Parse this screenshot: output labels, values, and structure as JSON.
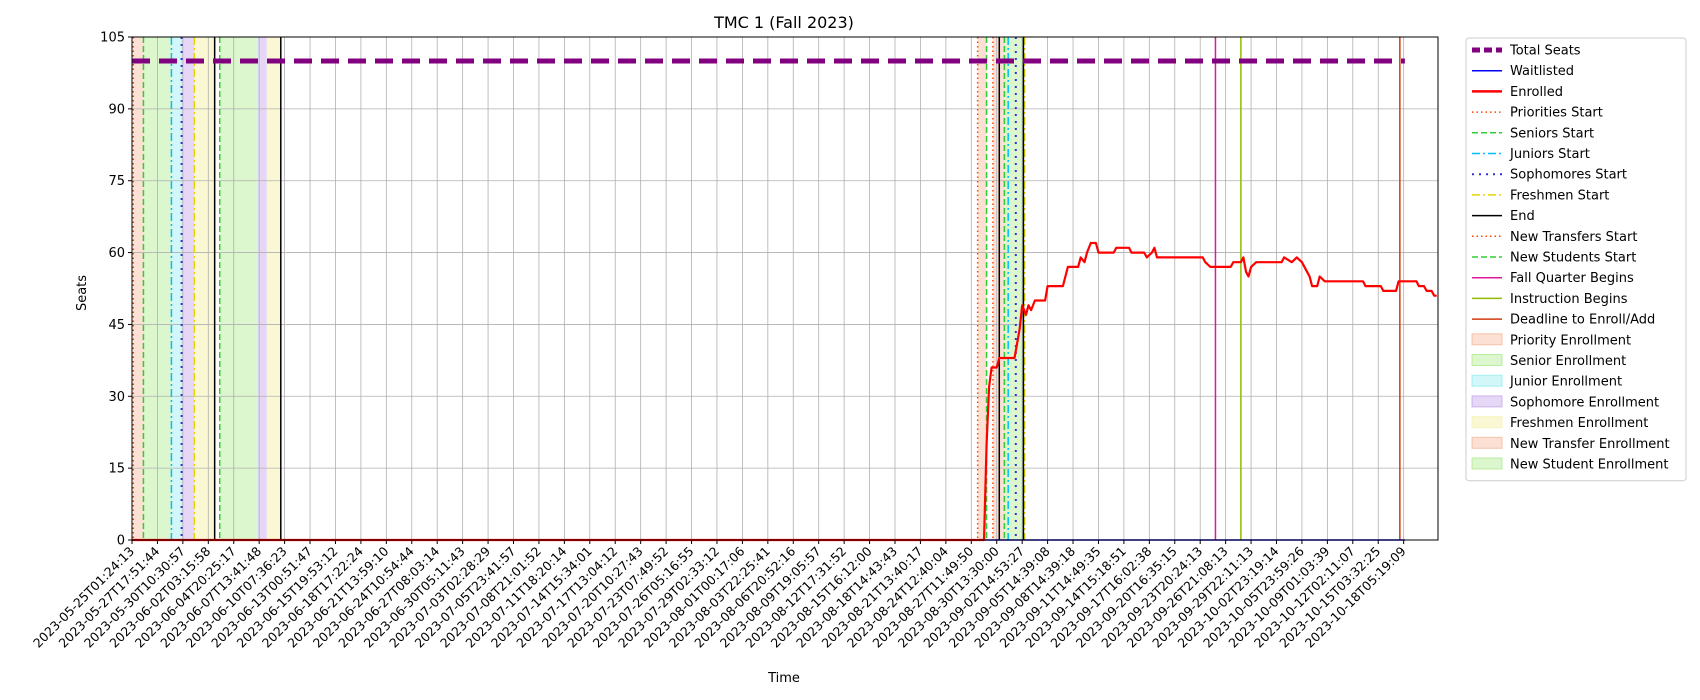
{
  "chart_data": {
    "type": "line",
    "title": "TMC 1 (Fall 2023)",
    "xlabel": "Time",
    "ylabel": "Seats",
    "ylim": [
      0,
      105
    ],
    "yticks": [
      0,
      15,
      30,
      45,
      60,
      75,
      90,
      105
    ],
    "grid": true,
    "legend_position": "outside-right",
    "xticks": [
      "2023-05-25T01:24:13",
      "2023-05-27T17:51:44",
      "2023-05-30T10:30:57",
      "2023-06-02T03:15:58",
      "2023-06-04T20:25:17",
      "2023-06-07T13:41:48",
      "2023-06-10T07:36:23",
      "2023-06-13T00:51:47",
      "2023-06-15T19:53:12",
      "2023-06-18T17:22:24",
      "2023-06-21T13:59:10",
      "2023-06-24T10:54:44",
      "2023-06-27T08:03:14",
      "2023-06-30T05:11:43",
      "2023-07-03T02:28:29",
      "2023-07-05T23:41:57",
      "2023-07-08T21:01:52",
      "2023-07-11T18:20:14",
      "2023-07-14T15:34:01",
      "2023-07-17T13:04:12",
      "2023-07-20T10:27:43",
      "2023-07-23T07:49:52",
      "2023-07-26T05:16:55",
      "2023-07-29T02:33:12",
      "2023-08-01T00:17:06",
      "2023-08-03T22:25:41",
      "2023-08-06T20:52:16",
      "2023-08-09T19:05:57",
      "2023-08-12T17:31:52",
      "2023-08-15T16:12:00",
      "2023-08-18T14:43:43",
      "2023-08-21T13:40:17",
      "2023-08-24T12:40:04",
      "2023-08-27T11:49:50",
      "2023-08-30T13:30:00",
      "2023-09-02T14:53:27",
      "2023-09-05T14:39:08",
      "2023-09-08T14:39:18",
      "2023-09-11T14:49:35",
      "2023-09-14T15:18:51",
      "2023-09-17T16:02:38",
      "2023-09-20T16:35:15",
      "2023-09-23T20:24:13",
      "2023-09-26T21:08:13",
      "2023-09-29T22:11:13",
      "2023-10-02T23:19:14",
      "2023-10-05T23:59:26",
      "2023-10-09T01:03:39",
      "2023-10-12T02:11:07",
      "2023-10-15T03:32:25",
      "2023-10-18T05:19:09"
    ],
    "x_tick_index": [
      0,
      1,
      2,
      3,
      4,
      5,
      6,
      7,
      8,
      9,
      10,
      11,
      12,
      13,
      14,
      15,
      16,
      17,
      18,
      19,
      20,
      21,
      22,
      23,
      24,
      25,
      26,
      27,
      28,
      29,
      30,
      31,
      32,
      33,
      34,
      35,
      36,
      37,
      38,
      39,
      40,
      41,
      42,
      43,
      44,
      45,
      46,
      47,
      48,
      49,
      50
    ],
    "series": [
      {
        "name": "Total Seats",
        "color": "#800080",
        "style": "dashed-thick",
        "points": [
          [
            0,
            100
          ],
          [
            50.05,
            100
          ]
        ]
      },
      {
        "name": "Waitlisted",
        "color": "#0000ff",
        "style": "solid",
        "points": [
          [
            0,
            0
          ],
          [
            50.05,
            0
          ]
        ]
      },
      {
        "name": "Enrolled",
        "color": "#ff0000",
        "style": "solid",
        "points": [
          [
            0,
            0
          ],
          [
            33.4,
            0
          ],
          [
            33.5,
            0
          ],
          [
            33.6,
            20
          ],
          [
            33.7,
            32
          ],
          [
            33.8,
            36
          ],
          [
            34.0,
            36
          ],
          [
            34.1,
            38
          ],
          [
            34.7,
            38
          ],
          [
            34.8,
            41
          ],
          [
            34.9,
            44
          ],
          [
            35.0,
            49
          ],
          [
            35.15,
            47
          ],
          [
            35.25,
            49
          ],
          [
            35.35,
            48
          ],
          [
            35.5,
            50
          ],
          [
            35.9,
            50
          ],
          [
            36.0,
            53
          ],
          [
            36.6,
            53
          ],
          [
            36.7,
            55
          ],
          [
            36.8,
            57
          ],
          [
            37.2,
            57
          ],
          [
            37.3,
            59
          ],
          [
            37.45,
            58
          ],
          [
            37.55,
            60
          ],
          [
            37.7,
            62
          ],
          [
            37.9,
            62
          ],
          [
            38.0,
            60
          ],
          [
            38.6,
            60
          ],
          [
            38.7,
            61
          ],
          [
            39.2,
            61
          ],
          [
            39.3,
            60
          ],
          [
            39.8,
            60
          ],
          [
            39.9,
            59
          ],
          [
            40.1,
            60
          ],
          [
            40.2,
            61
          ],
          [
            40.3,
            59
          ],
          [
            41.0,
            59
          ],
          [
            42.1,
            59
          ],
          [
            42.2,
            58
          ],
          [
            42.4,
            57
          ],
          [
            43.2,
            57
          ],
          [
            43.3,
            58
          ],
          [
            43.6,
            58
          ],
          [
            43.7,
            59
          ],
          [
            43.8,
            56
          ],
          [
            43.9,
            55
          ],
          [
            44.0,
            57
          ],
          [
            44.2,
            58
          ],
          [
            45.2,
            58
          ],
          [
            45.3,
            59
          ],
          [
            45.6,
            58
          ],
          [
            45.8,
            59
          ],
          [
            46.0,
            58
          ],
          [
            46.2,
            56
          ],
          [
            46.3,
            55
          ],
          [
            46.4,
            53
          ],
          [
            46.6,
            53
          ],
          [
            46.7,
            55
          ],
          [
            46.9,
            54
          ],
          [
            48.4,
            54
          ],
          [
            48.5,
            53
          ],
          [
            49.1,
            53
          ],
          [
            49.2,
            52
          ],
          [
            49.7,
            52
          ],
          [
            49.8,
            54
          ],
          [
            50.5,
            54
          ],
          [
            50.6,
            53
          ],
          [
            50.8,
            53
          ],
          [
            50.9,
            52
          ],
          [
            51.1,
            52
          ],
          [
            51.2,
            51
          ],
          [
            51.3,
            51
          ]
        ]
      }
    ],
    "vertical_lines": [
      {
        "name": "Priorities Start",
        "color": "#ff4500",
        "style": "dotted",
        "x": [
          0.05,
          33.25
        ]
      },
      {
        "name": "Seniors Start",
        "color": "#32cd32",
        "style": "dashed",
        "x": [
          0.45,
          33.6
        ]
      },
      {
        "name": "Juniors Start",
        "color": "#00bfff",
        "style": "dashdot",
        "x": [
          1.55,
          34.45
        ]
      },
      {
        "name": "Sophomores Start",
        "color": "#3333dd",
        "style": "dashdot-dense",
        "x": [
          1.95,
          34.75
        ]
      },
      {
        "name": "Freshmen Start",
        "color": "#e6d800",
        "style": "dashdot",
        "x": [
          2.45,
          35.1
        ]
      },
      {
        "name": "End",
        "color": "#000000",
        "style": "solid",
        "x": [
          3.25,
          5.85,
          34.1,
          35.05
        ]
      },
      {
        "name": "New Transfers Start",
        "color": "#ff4500",
        "style": "dotted",
        "x": [
          33.85
        ]
      },
      {
        "name": "New Students Start",
        "color": "#32cd32",
        "style": "dashed",
        "x": [
          3.45,
          34.3
        ]
      },
      {
        "name": "Fall Quarter Begins",
        "color": "#e0179c",
        "style": "solid",
        "x": [
          42.6
        ]
      },
      {
        "name": "Instruction Begins",
        "color": "#8fbc00",
        "style": "solid",
        "x": [
          43.6
        ]
      },
      {
        "name": "Deadline to Enroll/Add",
        "color": "#d13b0f",
        "style": "solid",
        "x": [
          49.85
        ]
      }
    ],
    "shaded_regions": [
      {
        "name": "Priority Enrollment",
        "color": "#f4a582",
        "opacity": 0.35,
        "ranges": [
          [
            0.05,
            0.45
          ],
          [
            33.25,
            33.6
          ]
        ]
      },
      {
        "name": "Senior Enrollment",
        "color": "#9be56f",
        "opacity": 0.35,
        "ranges": [
          [
            0.45,
            1.55
          ],
          [
            3.45,
            4.9
          ]
        ]
      },
      {
        "name": "Junior Enrollment",
        "color": "#7fe7ea",
        "opacity": 0.35,
        "ranges": [
          [
            1.55,
            1.95
          ],
          [
            4.9,
            4.95
          ]
        ]
      },
      {
        "name": "Sophomore Enrollment",
        "color": "#b58ee9",
        "opacity": 0.35,
        "ranges": [
          [
            1.95,
            2.45
          ],
          [
            4.95,
            5.3
          ]
        ]
      },
      {
        "name": "Freshmen Enrollment",
        "color": "#f5f0a0",
        "opacity": 0.45,
        "ranges": [
          [
            2.45,
            3.25
          ],
          [
            5.3,
            5.85
          ]
        ]
      },
      {
        "name": "New Transfer Enrollment",
        "color": "#f4a582",
        "opacity": 0.35,
        "ranges": [
          [
            33.85,
            34.3
          ]
        ]
      },
      {
        "name": "New Student Enrollment",
        "color": "#9be56f",
        "opacity": 0.35,
        "ranges": [
          [
            34.3,
            35.05
          ]
        ]
      }
    ],
    "legend": [
      {
        "label": "Total Seats",
        "kind": "line",
        "color": "#800080",
        "style": "dashed-thick"
      },
      {
        "label": "Waitlisted",
        "kind": "line",
        "color": "#0000ff",
        "style": "solid"
      },
      {
        "label": "Enrolled",
        "kind": "line",
        "color": "#ff0000",
        "style": "solid-thick"
      },
      {
        "label": "Priorities Start",
        "kind": "line",
        "color": "#ff4500",
        "style": "dotted"
      },
      {
        "label": "Seniors Start",
        "kind": "line",
        "color": "#32cd32",
        "style": "dashed"
      },
      {
        "label": "Juniors Start",
        "kind": "line",
        "color": "#00bfff",
        "style": "dashdot"
      },
      {
        "label": "Sophomores Start",
        "kind": "line",
        "color": "#3333dd",
        "style": "dashdot-dense"
      },
      {
        "label": "Freshmen Start",
        "kind": "line",
        "color": "#e6d800",
        "style": "dashdot"
      },
      {
        "label": "End",
        "kind": "line",
        "color": "#000000",
        "style": "solid"
      },
      {
        "label": "New Transfers Start",
        "kind": "line",
        "color": "#ff4500",
        "style": "dotted"
      },
      {
        "label": "New Students Start",
        "kind": "line",
        "color": "#32cd32",
        "style": "dashed"
      },
      {
        "label": "Fall Quarter Begins",
        "kind": "line",
        "color": "#e0179c",
        "style": "solid"
      },
      {
        "label": "Instruction Begins",
        "kind": "line",
        "color": "#8fbc00",
        "style": "solid"
      },
      {
        "label": "Deadline to Enroll/Add",
        "kind": "line",
        "color": "#d13b0f",
        "style": "solid"
      },
      {
        "label": "Priority Enrollment",
        "kind": "patch",
        "color": "#f4a582",
        "opacity": 0.35
      },
      {
        "label": "Senior Enrollment",
        "kind": "patch",
        "color": "#9be56f",
        "opacity": 0.35
      },
      {
        "label": "Junior Enrollment",
        "kind": "patch",
        "color": "#7fe7ea",
        "opacity": 0.35
      },
      {
        "label": "Sophomore Enrollment",
        "kind": "patch",
        "color": "#b58ee9",
        "opacity": 0.35
      },
      {
        "label": "Freshmen Enrollment",
        "kind": "patch",
        "color": "#f5f0a0",
        "opacity": 0.45
      },
      {
        "label": "New Transfer Enrollment",
        "kind": "patch",
        "color": "#f4a582",
        "opacity": 0.35
      },
      {
        "label": "New Student Enrollment",
        "kind": "patch",
        "color": "#9be56f",
        "opacity": 0.35
      }
    ]
  }
}
